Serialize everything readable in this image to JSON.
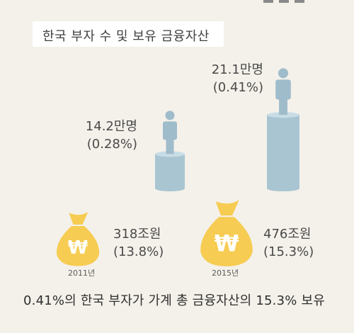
{
  "title": "한국 부자 수 및 보유 금융자산",
  "chart_data": {
    "type": "bar",
    "categories": [
      "2011년",
      "2015년"
    ],
    "series": [
      {
        "name": "부자 수",
        "values": [
          14.2,
          21.1
        ],
        "labels": [
          "14.2만명",
          "21.1만명"
        ],
        "shares": [
          "(0.28%)",
          "(0.41%)"
        ]
      },
      {
        "name": "보유 금융자산",
        "values": [
          318,
          476
        ],
        "labels": [
          "318조원",
          "476조원"
        ],
        "shares": [
          "(13.8%)",
          "(15.3%)"
        ]
      }
    ]
  },
  "caption": "0.41%의 한국 부자가 가계 총 금융자산의 15.3% 보유",
  "colors": {
    "background": "#f4f1ea",
    "cylinder": "#a9c5d2",
    "cylinder_top": "#c9dde6",
    "person": "#9fbccb",
    "bag": "#f6cc52",
    "won_sign": "#ffffff"
  }
}
